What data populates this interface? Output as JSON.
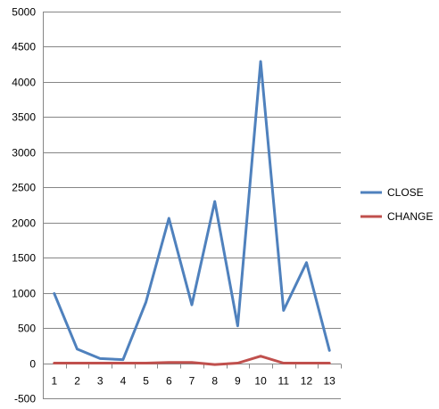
{
  "chart_data": {
    "type": "line",
    "title": "",
    "xlabel": "",
    "ylabel": "",
    "categories": [
      "1",
      "2",
      "3",
      "4",
      "5",
      "6",
      "7",
      "8",
      "9",
      "10",
      "11",
      "12",
      "13"
    ],
    "ylim": [
      -500,
      5000
    ],
    "yticks": [
      -500,
      0,
      500,
      1000,
      1500,
      2000,
      2500,
      3000,
      3500,
      4000,
      4500,
      5000
    ],
    "grid": true,
    "legend_position": "right",
    "series": [
      {
        "name": "CLOSE",
        "color": "#4F81BD",
        "values": [
          990,
          200,
          65,
          50,
          870,
          2060,
          830,
          2300,
          530,
          4290,
          750,
          1430,
          180
        ]
      },
      {
        "name": "CHANGE",
        "color": "#C0504D",
        "values": [
          0,
          0,
          0,
          0,
          0,
          10,
          10,
          -20,
          0,
          100,
          0,
          0,
          0
        ]
      }
    ]
  }
}
